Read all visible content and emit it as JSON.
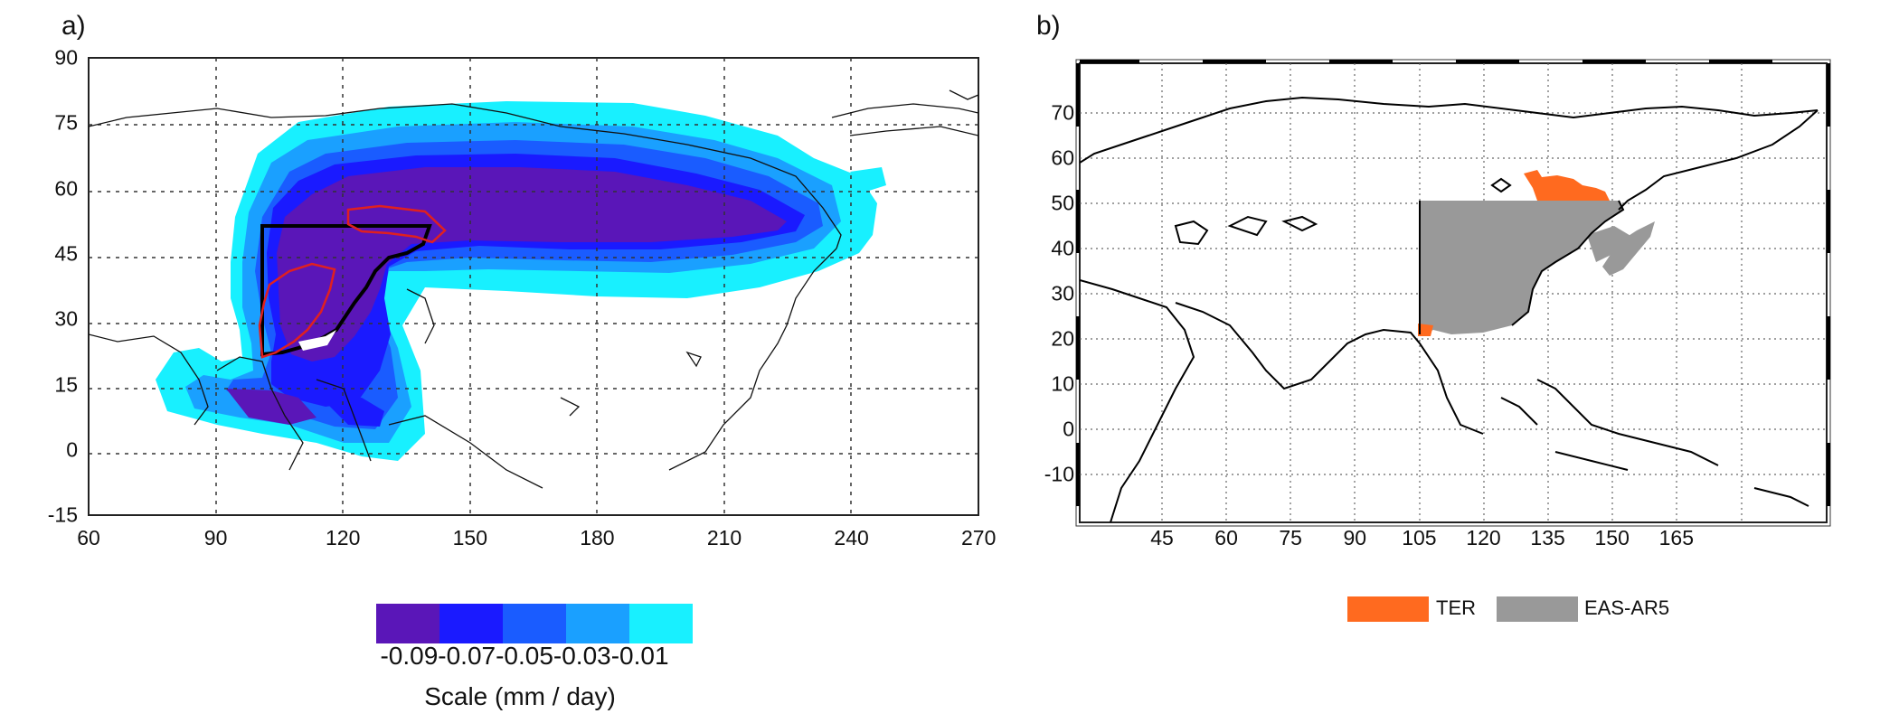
{
  "panel_a": {
    "label": "a)",
    "x_ticks": [
      "60",
      "90",
      "120",
      "150",
      "180",
      "210",
      "240",
      "270"
    ],
    "y_ticks": [
      "90",
      "75",
      "60",
      "45",
      "30",
      "15",
      "0",
      "-15"
    ],
    "colorbar": {
      "colors": [
        "#5a16b8",
        "#1a1aff",
        "#1a5cff",
        "#1aa0ff",
        "#18f0ff"
      ],
      "tick_labels": [
        "-0.09",
        "-0.07",
        "-0.05",
        "-0.03",
        "-0.01"
      ],
      "tick_text": "-0.09-0.07-0.05-0.03-0.01",
      "title": "Scale (mm / day)"
    }
  },
  "panel_b": {
    "label": "b)",
    "x_ticks": [
      "45",
      "60",
      "75",
      "90",
      "105",
      "120",
      "135",
      "150",
      "165"
    ],
    "y_ticks": [
      "70",
      "60",
      "50",
      "40",
      "30",
      "20",
      "10",
      "0",
      "-10"
    ],
    "legend": [
      {
        "label": "TER",
        "color": "#ff6a1f"
      },
      {
        "label": "EAS-AR5",
        "color": "#999999"
      }
    ]
  }
}
